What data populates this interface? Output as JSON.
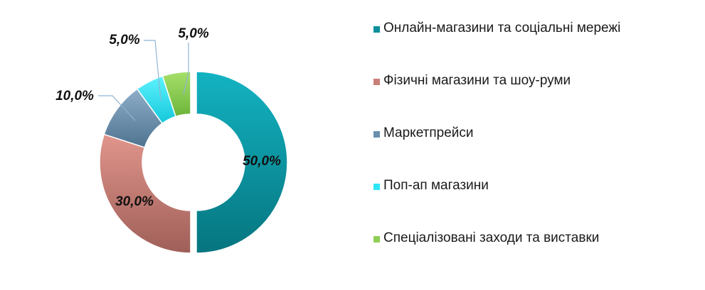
{
  "chart_data": {
    "type": "pie",
    "variant": "donut",
    "title": "",
    "categories": [
      "Онлайн-магазини та соціальні мережі",
      "Фізичні магазини та шоу-руми",
      "Маркетпрейси",
      "Поп-ап магазини",
      "Спеціалізовані заходи та виставки"
    ],
    "values": [
      50.0,
      30.0,
      10.0,
      5.0,
      5.0
    ],
    "labels": [
      "50,0%",
      "30,0%",
      "10,0%",
      "5,0%",
      "5,0%"
    ],
    "colors": [
      "#0a8f9c",
      "#c98078",
      "#6b8fac",
      "#2ee6f7",
      "#8fcf55"
    ],
    "exploded": [
      "Онлайн-магазини та соціальні мережі"
    ],
    "legend_position": "right"
  }
}
